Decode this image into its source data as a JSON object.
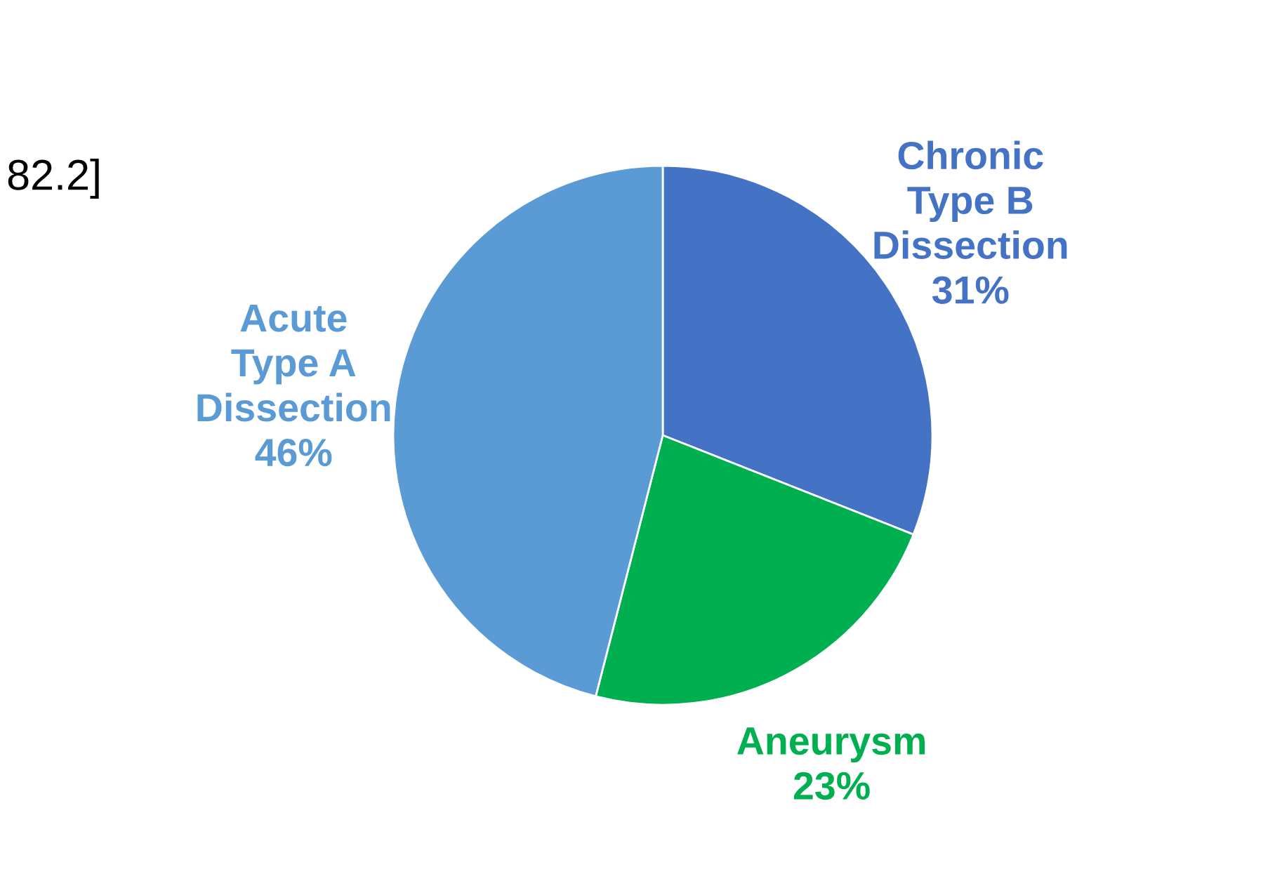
{
  "chart_data": {
    "type": "pie",
    "categories": [
      "Chronic\nType B\nDissection",
      "Aneurysm",
      "Acute\nType A\nDissection"
    ],
    "values": [
      31,
      23,
      46
    ],
    "value_labels": [
      "31%",
      "23%",
      "46%"
    ],
    "colors": [
      "#4472c4",
      "#00b050",
      "#5b9bd5"
    ],
    "annotations": [
      "82.2]"
    ]
  }
}
